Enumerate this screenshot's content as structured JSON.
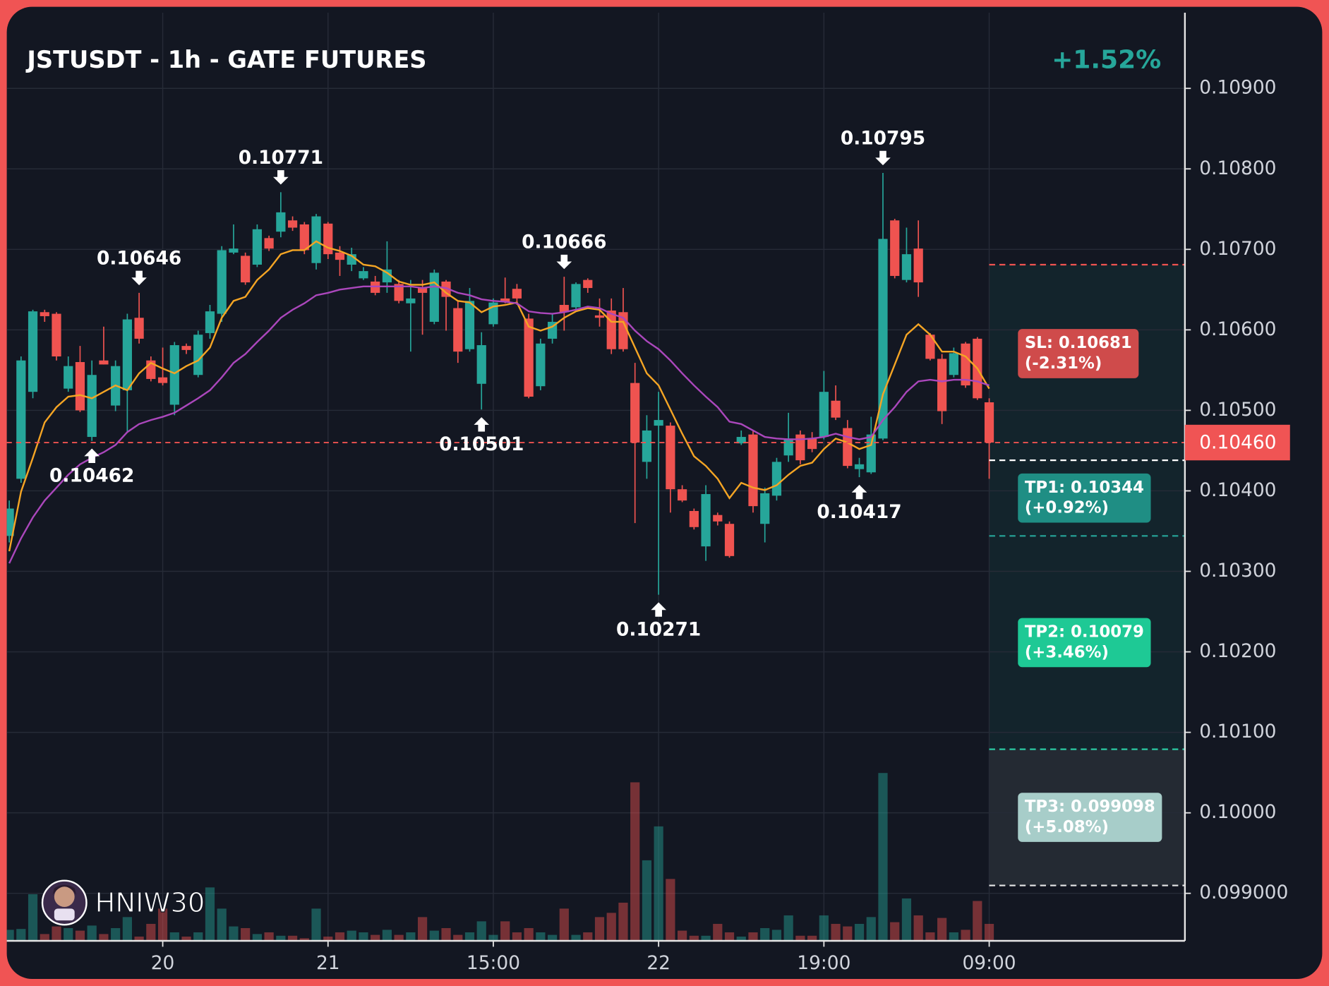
{
  "chart_data": {
    "type": "candlestick",
    "title": "JSTUSDT - 1h - GATE FUTURES",
    "change": "+1.52%",
    "watermark": "HNIW30",
    "categories": [
      null,
      null,
      null,
      null,
      null,
      null,
      null,
      null,
      null,
      null,
      null,
      null,
      null,
      "20",
      null,
      null,
      null,
      null,
      null,
      null,
      null,
      null,
      null,
      null,
      null,
      null,
      null,
      "21",
      null,
      null,
      null,
      null,
      null,
      null,
      null,
      null,
      null,
      null,
      null,
      null,
      null,
      "15:00",
      null,
      null,
      null,
      null,
      null,
      null,
      null,
      null,
      null,
      null,
      null,
      null,
      null,
      "22",
      null,
      null,
      null,
      null,
      null,
      null,
      null,
      null,
      null,
      null,
      null,
      null,
      null,
      "19:00",
      null,
      null,
      null,
      null,
      null,
      null,
      null,
      null,
      null,
      null,
      null,
      null,
      null,
      "09:00"
    ],
    "open": [
      0.10344,
      0.10415,
      0.10523,
      0.10622,
      0.1062,
      0.10527,
      0.1056,
      0.10467,
      0.10562,
      0.10506,
      0.10525,
      0.10615,
      0.10562,
      0.10541,
      0.10507,
      0.1058,
      0.10544,
      0.10596,
      0.1062,
      0.10696,
      0.10692,
      0.10681,
      0.10714,
      0.10722,
      0.10736,
      0.10731,
      0.10683,
      0.10732,
      0.10696,
      0.10681,
      0.10664,
      0.1066,
      0.10659,
      0.10657,
      0.10633,
      0.10652,
      0.1061,
      0.1066,
      0.10627,
      0.10576,
      0.10533,
      0.10607,
      0.10639,
      0.10651,
      0.10614,
      0.1053,
      0.10589,
      0.10631,
      0.10628,
      0.10662,
      0.10618,
      0.10624,
      0.10622,
      0.10534,
      0.10436,
      0.10481,
      0.10481,
      0.10402,
      0.10375,
      0.10331,
      0.1037,
      0.10359,
      0.10459,
      0.1047,
      0.10359,
      0.10394,
      0.10444,
      0.1047,
      0.10465,
      0.10467,
      0.10512,
      0.10478,
      0.10427,
      0.10423,
      0.10465,
      0.10736,
      0.10662,
      0.10701,
      0.10594,
      0.10564,
      0.10544,
      0.10583,
      0.10589,
      0.1051
    ],
    "high": [
      0.10388,
      0.10567,
      0.10625,
      0.10625,
      0.10622,
      0.10567,
      0.1058,
      0.10562,
      0.10604,
      0.10562,
      0.1062,
      0.10646,
      0.10567,
      0.10578,
      0.10585,
      0.10583,
      0.10599,
      0.10631,
      0.10704,
      0.10731,
      0.10696,
      0.10731,
      0.10717,
      0.10771,
      0.10741,
      0.10734,
      0.10744,
      0.10734,
      0.10704,
      0.10702,
      0.10678,
      0.10667,
      0.1071,
      0.10662,
      0.10662,
      0.10662,
      0.10675,
      0.10662,
      0.10636,
      0.10652,
      0.10597,
      0.10639,
      0.10665,
      0.10657,
      0.1062,
      0.10589,
      0.1062,
      0.10666,
      0.10659,
      0.10664,
      0.10639,
      0.10639,
      0.10652,
      0.10559,
      0.10494,
      0.10523,
      0.10485,
      0.10407,
      0.10378,
      0.10407,
      0.10373,
      0.10362,
      0.10475,
      0.10475,
      0.10404,
      0.10441,
      0.10497,
      0.10475,
      0.10473,
      0.10549,
      0.10531,
      0.10488,
      0.10441,
      0.10492,
      0.10795,
      0.10738,
      0.10727,
      0.10736,
      0.10596,
      0.1057,
      0.10578,
      0.10585,
      0.10591,
      0.10515
    ],
    "low": [
      0.10336,
      0.1041,
      0.10515,
      0.1061,
      0.10562,
      0.10523,
      0.10498,
      0.10462,
      0.10557,
      0.10499,
      0.10473,
      0.10583,
      0.10536,
      0.10531,
      0.10494,
      0.1057,
      0.10541,
      0.10589,
      0.1061,
      0.10694,
      0.10656,
      0.10678,
      0.10698,
      0.10715,
      0.10723,
      0.10694,
      0.10675,
      0.10688,
      0.10667,
      0.10673,
      0.10662,
      0.10643,
      0.10646,
      0.10633,
      0.10573,
      0.10594,
      0.10607,
      0.10599,
      0.10559,
      0.10573,
      0.10501,
      0.10604,
      0.10633,
      0.10631,
      0.10515,
      0.10525,
      0.10583,
      0.10599,
      0.10625,
      0.10646,
      0.10604,
      0.1057,
      0.10573,
      0.1036,
      0.10415,
      0.10271,
      0.10373,
      0.10386,
      0.10352,
      0.10313,
      0.10357,
      0.10317,
      0.10457,
      0.10373,
      0.10336,
      0.10388,
      0.10436,
      0.10433,
      0.10448,
      0.10464,
      0.10488,
      0.10428,
      0.10417,
      0.10421,
      0.10463,
      0.10664,
      0.10659,
      0.10641,
      0.10562,
      0.10483,
      0.10541,
      0.10528,
      0.10513,
      0.10415
    ],
    "close": [
      0.10378,
      0.10562,
      0.10623,
      0.10617,
      0.10567,
      0.10555,
      0.105,
      0.10544,
      0.10557,
      0.10555,
      0.10613,
      0.10589,
      0.10539,
      0.10534,
      0.10581,
      0.10575,
      0.10594,
      0.10623,
      0.10699,
      0.10701,
      0.10659,
      0.10725,
      0.10701,
      0.10746,
      0.10727,
      0.10699,
      0.10741,
      0.10694,
      0.10687,
      0.10694,
      0.10673,
      0.10646,
      0.10675,
      0.10636,
      0.10639,
      0.10646,
      0.10671,
      0.10641,
      0.10573,
      0.10636,
      0.10581,
      0.10634,
      0.10635,
      0.10639,
      0.10517,
      0.10583,
      0.1061,
      0.10622,
      0.10657,
      0.10652,
      0.10615,
      0.10576,
      0.10576,
      0.1046,
      0.10475,
      0.10488,
      0.10402,
      0.10388,
      0.10355,
      0.10396,
      0.10362,
      0.10319,
      0.10467,
      0.10381,
      0.10397,
      0.10436,
      0.10465,
      0.10438,
      0.10452,
      0.10523,
      0.10491,
      0.10431,
      0.10433,
      0.1047,
      0.10713,
      0.10667,
      0.10694,
      0.10659,
      0.10564,
      0.10499,
      0.10571,
      0.10531,
      0.10515,
      0.1046
    ],
    "volume": [
      13,
      14,
      55,
      8,
      17,
      15,
      12,
      18,
      8,
      15,
      28,
      5,
      20,
      38,
      10,
      5,
      10,
      63,
      38,
      17,
      15,
      8,
      10,
      6,
      6,
      3,
      38,
      5,
      10,
      12,
      10,
      7,
      13,
      7,
      10,
      28,
      12,
      15,
      7,
      10,
      23,
      7,
      23,
      10,
      15,
      10,
      7,
      38,
      7,
      10,
      28,
      33,
      45,
      187,
      95,
      135,
      73,
      12,
      6,
      6,
      20,
      10,
      5,
      10,
      15,
      13,
      30,
      6,
      6,
      30,
      20,
      17,
      20,
      28,
      198,
      22,
      50,
      30,
      10,
      27,
      10,
      13,
      47,
      20
    ],
    "up_color": "#26a69a",
    "down_color": "#ef5350",
    "series": [
      {
        "color": "#f5a524",
        "values": [
          0.10325,
          0.10399,
          0.10441,
          0.10485,
          0.10504,
          0.10517,
          0.10519,
          0.10515,
          0.10523,
          0.10531,
          0.10525,
          0.10546,
          0.10559,
          0.10552,
          0.10546,
          0.10555,
          0.10562,
          0.10578,
          0.10615,
          0.10636,
          0.10641,
          0.10662,
          0.10675,
          0.10694,
          0.10699,
          0.10699,
          0.1071,
          0.10702,
          0.10698,
          0.10692,
          0.10681,
          0.10679,
          0.10671,
          0.1066,
          0.10656,
          0.10656,
          0.10659,
          0.10646,
          0.10636,
          0.10634,
          0.10622,
          0.10629,
          0.10631,
          0.10634,
          0.10604,
          0.10599,
          0.10604,
          0.10615,
          0.10623,
          0.10627,
          0.10625,
          0.1061,
          0.1061,
          0.10578,
          0.10546,
          0.10531,
          0.10501,
          0.10471,
          0.10443,
          0.10431,
          0.10415,
          0.10391,
          0.1041,
          0.10404,
          0.10401,
          0.10407,
          0.1042,
          0.10431,
          0.10435,
          0.10452,
          0.10465,
          0.1046,
          0.10452,
          0.10457,
          0.1052,
          0.10557,
          0.10594,
          0.10607,
          0.10594,
          0.10573,
          0.10573,
          0.10567,
          0.10552,
          0.10527
        ]
      },
      {
        "color": "#ab47bc",
        "values": [
          0.1031,
          0.10341,
          0.10367,
          0.10388,
          0.10404,
          0.1042,
          0.10433,
          0.10441,
          0.10448,
          0.10457,
          0.10473,
          0.10483,
          0.10488,
          0.10492,
          0.10497,
          0.10506,
          0.10515,
          0.10525,
          0.10541,
          0.10559,
          0.1057,
          0.10585,
          0.10599,
          0.10615,
          0.10625,
          0.10633,
          0.10643,
          0.10646,
          0.1065,
          0.10652,
          0.10654,
          0.10654,
          0.10654,
          0.10654,
          0.10654,
          0.10652,
          0.10654,
          0.10652,
          0.10646,
          0.10643,
          0.10638,
          0.10636,
          0.10635,
          0.10633,
          0.10623,
          0.10621,
          0.1062,
          0.10622,
          0.10625,
          0.10629,
          0.10627,
          0.1062,
          0.10615,
          0.10599,
          0.10586,
          0.10576,
          0.10562,
          0.10546,
          0.10531,
          0.10517,
          0.10504,
          0.10486,
          0.10483,
          0.10475,
          0.10467,
          0.10465,
          0.10464,
          0.10464,
          0.10465,
          0.10467,
          0.10471,
          0.10467,
          0.10464,
          0.10467,
          0.10488,
          0.10504,
          0.10523,
          0.10536,
          0.10538,
          0.10536,
          0.10538,
          0.10538,
          0.10536,
          0.10531
        ]
      }
    ],
    "high_labels": [
      0.10646,
      0.10771,
      0.10666,
      0.10795
    ],
    "low_labels": [
      0.10462,
      0.10501,
      0.10271,
      0.10417
    ],
    "last_price": {
      "value": 0.1046,
      "label": "0.10460"
    },
    "levels": [
      {
        "value": 0.10681,
        "label": "SL: 0.10681",
        "change": "(-2.31%)",
        "color": "#ef5350",
        "box": "#cf4b4b",
        "fill": "#3a1f27"
      },
      {
        "value": 0.10438,
        "color": "#ffffff",
        "fill": "#13242c"
      },
      {
        "value": 0.10344,
        "label": "TP1: 0.10344",
        "change": "(+0.92%)",
        "color": "#26a69a",
        "box": "#1f8e84",
        "fill": "#13242c"
      },
      {
        "value": 0.10079,
        "label": "TP2: 0.10079",
        "change": "(+3.46%)",
        "color": "#2bd3aa",
        "box": "#1ec995",
        "fill": "#13242c"
      },
      {
        "value": 0.099098,
        "label": "TP3: 0.099098",
        "change": "(+5.08%)",
        "color": "#e8e8e8",
        "box": "#a7cdc9",
        "fill": "#242a33"
      }
    ],
    "ylim": [
      0.09841,
      0.10994
    ],
    "yticks": [
      {
        "value": 0.109,
        "label": "0.10900"
      },
      {
        "value": 0.108,
        "label": "0.10800"
      },
      {
        "value": 0.107,
        "label": "0.10700"
      },
      {
        "value": 0.106,
        "label": "0.10600"
      },
      {
        "value": 0.105,
        "label": "0.10500"
      },
      {
        "value": 0.104,
        "label": "0.10400"
      },
      {
        "value": 0.103,
        "label": "0.10300"
      },
      {
        "value": 0.102,
        "label": "0.10200"
      },
      {
        "value": 0.101,
        "label": "0.10100"
      },
      {
        "value": 0.1,
        "label": "0.10000"
      },
      {
        "value": 0.099,
        "label": "0.099000"
      }
    ],
    "grid": true
  }
}
